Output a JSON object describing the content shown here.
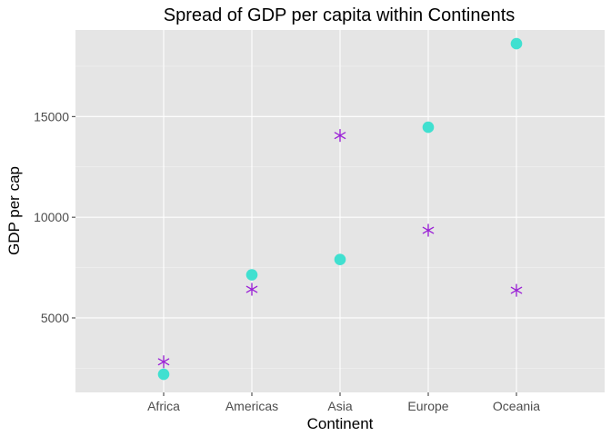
{
  "chart_data": {
    "type": "scatter",
    "title": "Spread of GDP per capita within Continents",
    "xlabel": "Continent",
    "ylabel": "GDP per cap",
    "categories": [
      "Africa",
      "Americas",
      "Asia",
      "Europe",
      "Oceania"
    ],
    "ylim": [
      1300,
      19300
    ],
    "yticks": [
      5000,
      10000,
      15000
    ],
    "grid": true,
    "series": [
      {
        "marker": "circle",
        "color": "#40e0d0",
        "values": [
          2200,
          7140,
          7900,
          14470,
          18620
        ]
      },
      {
        "marker": "asterisk",
        "color": "#9a1fd6",
        "values": [
          2820,
          6420,
          14060,
          9350,
          6370
        ]
      }
    ]
  },
  "colors": {
    "panel_background": "#e5e5e5",
    "grid_major": "#ffffff",
    "grid_minor": "#f2f2f2",
    "tick_label": "#4d4d4d"
  }
}
